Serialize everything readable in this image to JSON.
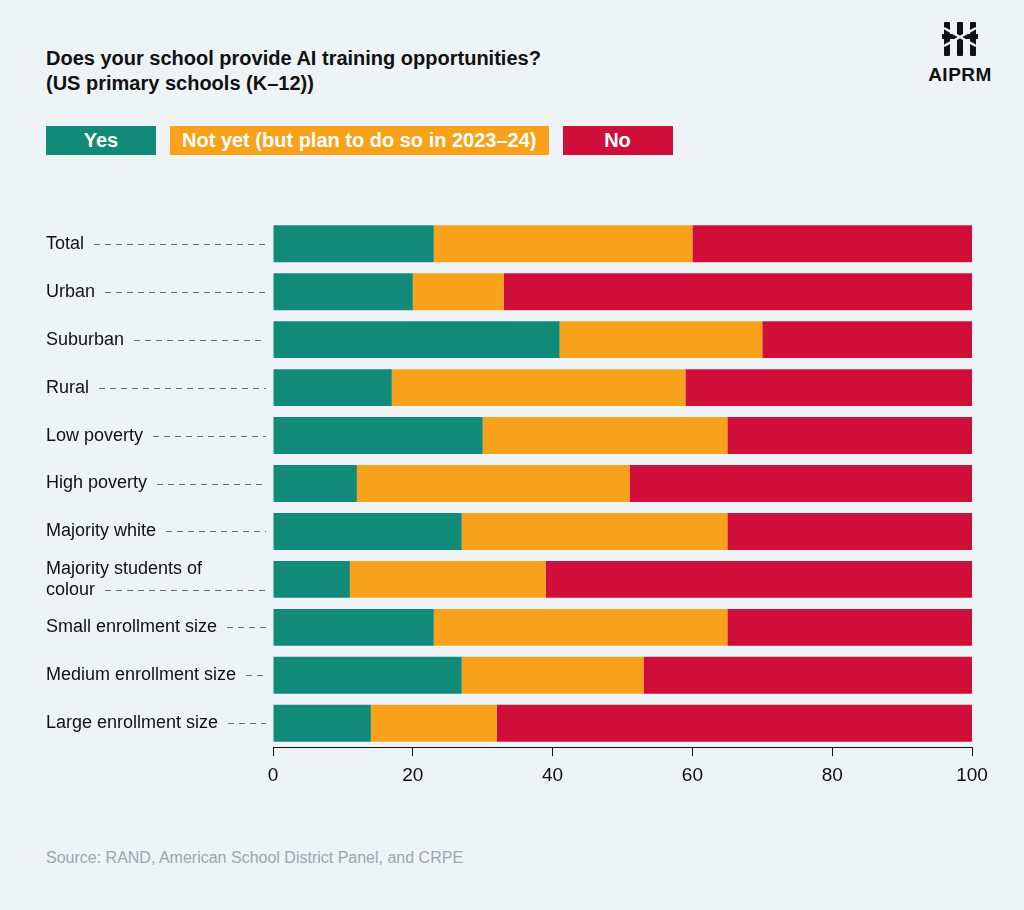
{
  "chart_data": {
    "type": "bar",
    "orientation": "horizontal",
    "stacked": true,
    "title": "Does your school provide AI training opportunities?",
    "subtitle": "(US primary schools (K–12))",
    "categories": [
      "Total",
      "Urban",
      "Suburban",
      "Rural",
      "Low poverty",
      "High poverty",
      "Majority white",
      "Majority students of colour",
      "Small enrollment size",
      "Medium enrollment size",
      "Large enrollment size"
    ],
    "series": [
      {
        "name": "Yes",
        "color": "#128a78",
        "values": [
          23,
          20,
          41,
          17,
          30,
          12,
          27,
          11,
          23,
          27,
          14
        ]
      },
      {
        "name": "Not yet (but plan to do so in 2023–24)",
        "color": "#f8a21c",
        "values": [
          37,
          13,
          29,
          42,
          35,
          39,
          38,
          28,
          42,
          26,
          18
        ]
      },
      {
        "name": "No",
        "color": "#cf0f3a",
        "values": [
          40,
          67,
          30,
          41,
          35,
          49,
          35,
          61,
          35,
          47,
          68
        ]
      }
    ],
    "xlim": [
      0,
      100
    ],
    "xticks": [
      0,
      20,
      40,
      60,
      80,
      100
    ],
    "grid": false,
    "legend": "top-left",
    "source": "Source: RAND, American School District Panel, and CRPE",
    "logo": "AIPRM"
  }
}
